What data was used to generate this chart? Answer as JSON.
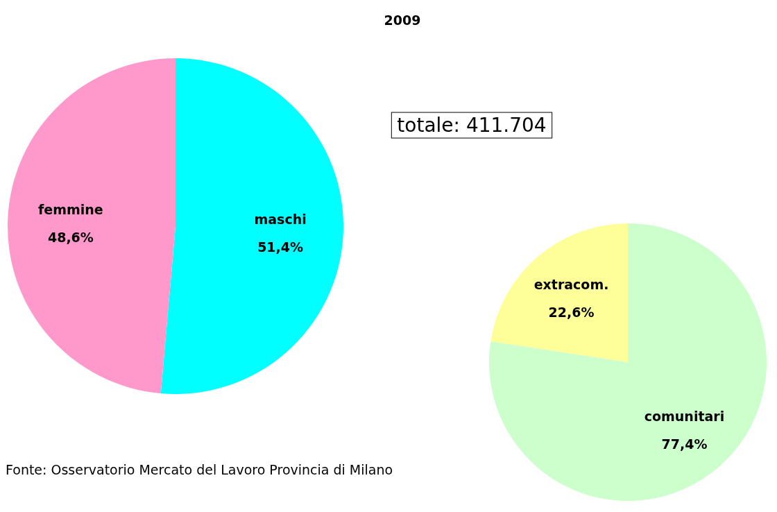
{
  "chart_data": [
    {
      "type": "pie",
      "title": "2009",
      "categories": [
        "maschi",
        "femmine"
      ],
      "values": [
        51.4,
        48.6
      ],
      "colors": [
        "#00ffff",
        "#ff99cc"
      ],
      "value_labels": [
        "51,4%",
        "48,6%"
      ],
      "annotations": [
        "totale: 411.704",
        "Fonte: Osservatorio Mercato del Lavoro Provincia di Milano"
      ]
    },
    {
      "type": "pie",
      "categories": [
        "comunitari",
        "extracom."
      ],
      "values": [
        77.4,
        22.6
      ],
      "colors": [
        "#ccffcc",
        "#ffff99"
      ],
      "value_labels": [
        "77,4%",
        "22,6%"
      ]
    }
  ]
}
